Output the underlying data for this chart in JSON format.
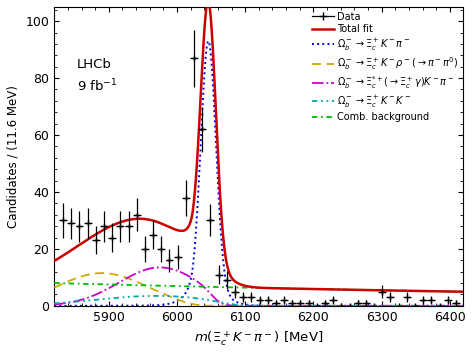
{
  "xlim": [
    5820,
    6420
  ],
  "ylim": [
    0,
    105
  ],
  "xlabel": "$m(\\Xi_c^+ K^- \\pi^-)$ [MeV]",
  "ylabel": "Candidates / (11.6 MeV)",
  "xticks": [
    5900,
    6000,
    6100,
    6200,
    6300,
    6400
  ],
  "yticks": [
    0,
    20,
    40,
    60,
    80,
    100
  ],
  "lhcb_text": "LHCb\n9 fb$^{-1}$",
  "data_x": [
    5833,
    5845,
    5857,
    5869,
    5881,
    5893,
    5905,
    5917,
    5929,
    5941,
    5953,
    5965,
    5977,
    5989,
    6001,
    6013,
    6025,
    6037,
    6049,
    6061,
    6073,
    6085,
    6097,
    6109,
    6121,
    6133,
    6145,
    6157,
    6169,
    6181,
    6193,
    6205,
    6217,
    6229,
    6241,
    6253,
    6265,
    6277,
    6289,
    6301,
    6313,
    6325,
    6337,
    6349,
    6361,
    6373,
    6385,
    6397,
    6409
  ],
  "data_y": [
    30,
    29,
    28,
    29,
    23,
    28,
    24,
    28,
    28,
    32,
    20,
    25,
    20,
    16,
    17,
    38,
    87,
    62,
    30,
    11,
    9,
    5,
    3,
    3,
    2,
    2,
    1,
    2,
    1,
    1,
    1,
    0,
    1,
    2,
    0,
    0,
    1,
    1,
    0,
    5,
    3,
    0,
    3,
    0,
    2,
    2,
    0,
    2,
    1
  ],
  "data_yerr": [
    6,
    5.5,
    5.4,
    5.5,
    4.9,
    5.4,
    5.0,
    5.4,
    5.4,
    5.8,
    4.6,
    5.1,
    4.6,
    4.1,
    4.2,
    6.3,
    10.0,
    8.0,
    5.6,
    3.4,
    3.1,
    2.3,
    1.8,
    1.8,
    1.5,
    1.5,
    1.2,
    1.5,
    1.2,
    1.2,
    1.2,
    0.8,
    1.2,
    1.5,
    0.8,
    0.8,
    1.2,
    1.2,
    0.8,
    2.3,
    1.8,
    0.8,
    1.8,
    0.8,
    1.5,
    1.5,
    0.8,
    1.5,
    1.2
  ],
  "data_xerr": 5.8,
  "total_fit_color": "#cc0000",
  "signal_color": "#0000dd",
  "rho_color": "#ccaa00",
  "xi_gamma_color": "#cc00cc",
  "kk_color": "#00aaaa",
  "comb_bkg_color": "#00bb00",
  "legend_labels": [
    "Data",
    "Total fit",
    "$\\Omega_b^- \\to \\Xi_c^+ K^- \\pi^-$",
    "$\\Omega_b^- \\to \\Xi_c^+ K^- \\rho^-(\\to\\pi^-\\pi^0)$",
    "$\\Omega_b^- \\to \\Xi_c^{*+}(\\to\\Xi_c^+\\gamma)K^-\\pi^-$",
    "$\\Omega_b^- \\to \\Xi_c^+ K^- K^-$",
    "Comb. background"
  ]
}
